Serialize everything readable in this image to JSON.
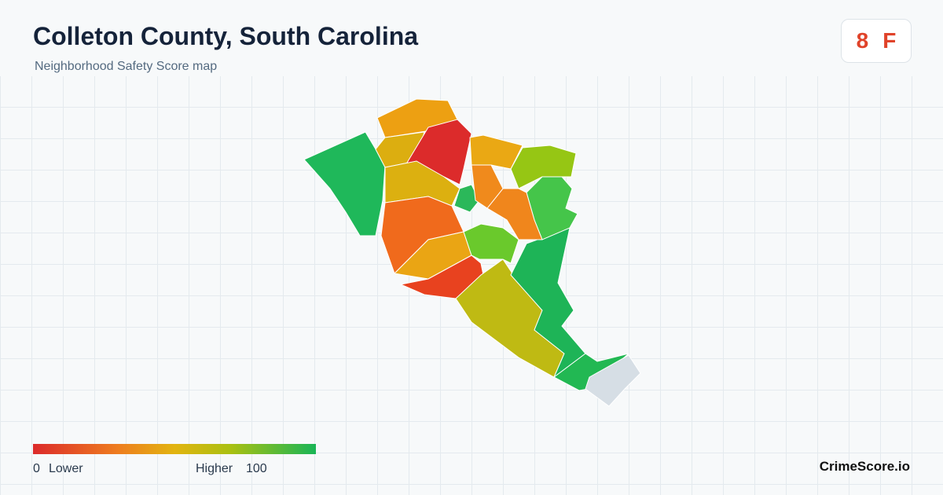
{
  "header": {
    "title": "Colleton County, South Carolina",
    "subtitle": "Neighborhood Safety Score map"
  },
  "score": {
    "value": 8,
    "grade": "F"
  },
  "legend": {
    "min": 0,
    "min_label": "Lower",
    "max_label": "Higher",
    "max": 100
  },
  "brand": "CrimeScore.io"
}
